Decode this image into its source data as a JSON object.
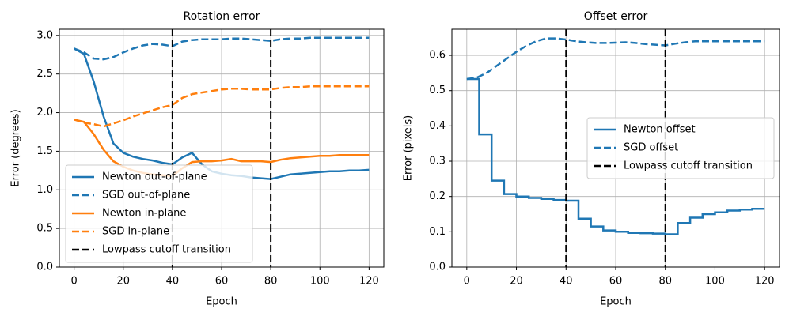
{
  "chart_data": [
    {
      "type": "line",
      "title": "Rotation error",
      "x_label": "Epoch",
      "y_label": "Error (degrees)",
      "xlim": [
        -6,
        126
      ],
      "ylim": [
        0,
        3.08
      ],
      "xticks": [
        0,
        20,
        40,
        60,
        80,
        100,
        120
      ],
      "yticks": [
        {
          "value": 0,
          "label": "0.0"
        },
        0.5,
        {
          "value": 1,
          "label": "1.0"
        },
        1.5,
        {
          "value": 2,
          "label": "2.0"
        },
        2.5,
        {
          "value": 3,
          "label": "3.0"
        }
      ],
      "grid": true,
      "legend": "lower left",
      "x": [
        0,
        4,
        8,
        12,
        16,
        20,
        24,
        28,
        32,
        36,
        40,
        44,
        48,
        52,
        56,
        60,
        64,
        68,
        72,
        76,
        80,
        84,
        88,
        92,
        96,
        100,
        104,
        108,
        112,
        116,
        120
      ],
      "series": [
        {
          "name": "Newton out-of-plane",
          "color": "#1f77b4",
          "linestyle": "solid",
          "values": [
            2.83,
            2.76,
            2.4,
            1.95,
            1.6,
            1.48,
            1.43,
            1.4,
            1.38,
            1.35,
            1.33,
            1.42,
            1.48,
            1.33,
            1.24,
            1.21,
            1.19,
            1.18,
            1.16,
            1.15,
            1.14,
            1.17,
            1.2,
            1.21,
            1.22,
            1.23,
            1.24,
            1.24,
            1.25,
            1.25,
            1.26
          ]
        },
        {
          "name": "SGD out-of-plane",
          "color": "#1f77b4",
          "linestyle": "dashed",
          "values": [
            2.83,
            2.78,
            2.7,
            2.69,
            2.72,
            2.78,
            2.83,
            2.87,
            2.89,
            2.88,
            2.86,
            2.92,
            2.94,
            2.95,
            2.95,
            2.95,
            2.96,
            2.96,
            2.95,
            2.94,
            2.93,
            2.95,
            2.96,
            2.96,
            2.97,
            2.97,
            2.97,
            2.97,
            2.97,
            2.97,
            2.97
          ]
        },
        {
          "name": "Newton in-plane",
          "color": "#ff7f0e",
          "linestyle": "solid",
          "values": [
            1.91,
            1.88,
            1.72,
            1.52,
            1.37,
            1.3,
            1.25,
            1.22,
            1.2,
            1.19,
            1.18,
            1.28,
            1.36,
            1.37,
            1.37,
            1.38,
            1.4,
            1.37,
            1.37,
            1.37,
            1.36,
            1.39,
            1.41,
            1.42,
            1.43,
            1.44,
            1.44,
            1.45,
            1.45,
            1.45,
            1.45
          ]
        },
        {
          "name": "SGD in-plane",
          "color": "#ff7f0e",
          "linestyle": "dashed",
          "values": [
            1.91,
            1.87,
            1.85,
            1.82,
            1.86,
            1.9,
            1.95,
            1.99,
            2.03,
            2.07,
            2.1,
            2.19,
            2.24,
            2.26,
            2.28,
            2.3,
            2.31,
            2.31,
            2.3,
            2.3,
            2.3,
            2.32,
            2.33,
            2.33,
            2.34,
            2.34,
            2.34,
            2.34,
            2.34,
            2.34,
            2.34
          ]
        }
      ],
      "vlines": {
        "name": "Lowpass cutoff transition",
        "color": "#000000",
        "linestyle": "dashed",
        "x": [
          40,
          80
        ]
      }
    },
    {
      "type": "line",
      "title": "Offset error",
      "x_label": "Epoch",
      "y_label": "Error (pixels)",
      "xlim": [
        -6,
        126
      ],
      "ylim": [
        0,
        0.674
      ],
      "xticks": [
        0,
        20,
        40,
        60,
        80,
        100,
        120
      ],
      "yticks": [
        {
          "value": 0,
          "label": "0.0"
        },
        0.1,
        0.2,
        0.3,
        0.4,
        0.5,
        0.6
      ],
      "grid": true,
      "legend": "center right",
      "series": [
        {
          "name": "Newton offset",
          "color": "#1f77b4",
          "linestyle": "solid",
          "x": [
            0,
            5,
            5,
            10,
            10,
            15,
            15,
            20,
            20,
            25,
            25,
            30,
            30,
            35,
            35,
            40,
            40,
            45,
            45,
            50,
            50,
            55,
            55,
            60,
            60,
            65,
            65,
            70,
            70,
            75,
            75,
            80,
            80,
            85,
            85,
            90,
            90,
            95,
            95,
            100,
            100,
            105,
            105,
            110,
            110,
            115,
            115,
            120
          ],
          "values": [
            0.533,
            0.533,
            0.376,
            0.376,
            0.245,
            0.245,
            0.207,
            0.207,
            0.2,
            0.2,
            0.196,
            0.196,
            0.193,
            0.193,
            0.19,
            0.19,
            0.188,
            0.188,
            0.137,
            0.137,
            0.115,
            0.115,
            0.104,
            0.104,
            0.1,
            0.1,
            0.097,
            0.097,
            0.096,
            0.096,
            0.095,
            0.095,
            0.093,
            0.093,
            0.125,
            0.125,
            0.14,
            0.14,
            0.15,
            0.15,
            0.155,
            0.155,
            0.16,
            0.16,
            0.163,
            0.163,
            0.165,
            0.165
          ]
        },
        {
          "name": "SGD offset",
          "color": "#1f77b4",
          "linestyle": "dashed",
          "x": [
            0,
            4,
            8,
            12,
            16,
            20,
            24,
            28,
            32,
            36,
            40,
            44,
            48,
            52,
            56,
            60,
            64,
            68,
            72,
            76,
            80,
            84,
            88,
            92,
            96,
            100,
            104,
            108,
            112,
            116,
            120
          ],
          "values": [
            0.533,
            0.537,
            0.55,
            0.57,
            0.59,
            0.61,
            0.627,
            0.64,
            0.648,
            0.648,
            0.645,
            0.64,
            0.637,
            0.635,
            0.635,
            0.636,
            0.637,
            0.635,
            0.632,
            0.63,
            0.628,
            0.633,
            0.637,
            0.64,
            0.64,
            0.64,
            0.64,
            0.64,
            0.64,
            0.64,
            0.64
          ]
        }
      ],
      "vlines": {
        "name": "Lowpass cutoff transition",
        "color": "#000000",
        "linestyle": "dashed",
        "x": [
          40,
          80
        ]
      }
    }
  ]
}
